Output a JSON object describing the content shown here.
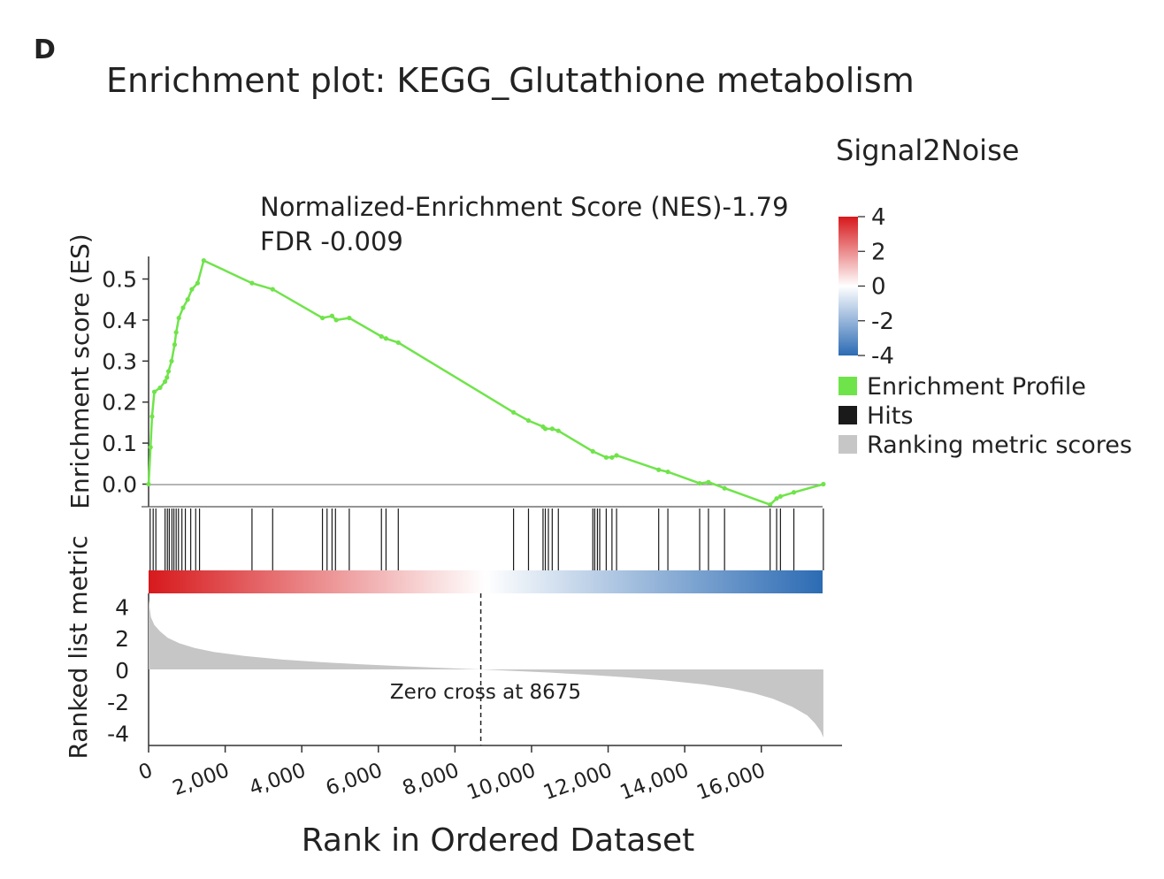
{
  "panel_label": "D",
  "title": "Enrichment plot: KEGG_Glutathione metabolism",
  "annotation": {
    "line1": "Normalized-Enrichment Score (NES)-1.79",
    "line2": "FDR -0.009"
  },
  "zero_cross_label": "Zero cross at 8675",
  "colorbar": {
    "title": "Signal2Noise",
    "ticks": [
      "4",
      "2",
      "0",
      "-2",
      "-4"
    ],
    "high_color": "#d7191c",
    "mid_color": "#ffffff",
    "low_color": "#2c6bb4"
  },
  "legend": [
    {
      "label": "Enrichment Profile",
      "color": "#6fe44a"
    },
    {
      "label": "Hits",
      "color": "#1a1a1a"
    },
    {
      "label": "Ranking metric scores",
      "color": "#c6c6c6"
    }
  ],
  "chart_data": {
    "type": "line",
    "xlabel": "Rank in Ordered Dataset",
    "ylabel_top": "Enrichment score (ES)",
    "ylabel_bottom": "Ranked list metric",
    "xlim": [
      0,
      17600
    ],
    "x_ticks": [
      0,
      2000,
      4000,
      6000,
      8000,
      10000,
      12000,
      14000,
      16000
    ],
    "x_tick_labels": [
      "0",
      "2,000",
      "4,000",
      "6,000",
      "8,000",
      "10,000",
      "12,000",
      "14,000",
      "16,000"
    ],
    "es_ylim": [
      -0.055,
      0.555
    ],
    "es_ticks": [
      0.0,
      0.1,
      0.2,
      0.3,
      0.4,
      0.5
    ],
    "es_tick_labels": [
      "0.0",
      "0.1",
      "0.2",
      "0.3",
      "0.4",
      "0.5"
    ],
    "metric_ylim": [
      -4.8,
      4.8
    ],
    "metric_ticks": [
      4,
      2,
      0,
      -2,
      -4
    ],
    "metric_tick_labels": [
      "4",
      "2",
      "0",
      "-2",
      "-4"
    ],
    "zero_cross": 8675,
    "series": [
      {
        "name": "Enrichment Profile",
        "x": [
          0,
          50,
          90,
          150,
          300,
          430,
          480,
          520,
          600,
          680,
          720,
          790,
          900,
          1020,
          1130,
          1280,
          1440,
          2700,
          3240,
          4540,
          4790,
          4900,
          5240,
          6080,
          6200,
          6520,
          9530,
          9920,
          10300,
          10360,
          10540,
          10700,
          11600,
          11950,
          12100,
          12220,
          13320,
          13560,
          14390,
          14620,
          15040,
          16230,
          16400,
          16500,
          16850,
          17620
        ],
        "y": [
          0.0,
          0.09,
          0.165,
          0.225,
          0.235,
          0.25,
          0.26,
          0.275,
          0.3,
          0.34,
          0.37,
          0.405,
          0.43,
          0.45,
          0.475,
          0.49,
          0.545,
          0.49,
          0.475,
          0.405,
          0.41,
          0.4,
          0.405,
          0.36,
          0.355,
          0.345,
          0.175,
          0.155,
          0.14,
          0.135,
          0.135,
          0.13,
          0.08,
          0.065,
          0.065,
          0.07,
          0.035,
          0.03,
          0.002,
          0.005,
          -0.01,
          -0.05,
          -0.035,
          -0.03,
          -0.02,
          0.0
        ]
      },
      {
        "name": "Hits",
        "x": [
          40,
          120,
          190,
          430,
          490,
          540,
          610,
          660,
          720,
          780,
          870,
          960,
          1100,
          1230,
          1330,
          2700,
          3240,
          4540,
          4660,
          4790,
          4880,
          5240,
          6080,
          6200,
          6520,
          9530,
          9920,
          10300,
          10360,
          10440,
          10540,
          10700,
          11600,
          11650,
          11720,
          11780,
          11950,
          12100,
          12220,
          13320,
          13560,
          14390,
          14620,
          15040,
          16230,
          16400,
          16500,
          16850,
          17620
        ]
      },
      {
        "name": "Ranking metric scores",
        "x": [
          0,
          60,
          150,
          300,
          500,
          800,
          1200,
          1700,
          2500,
          3500,
          4500,
          5500,
          6500,
          7500,
          8675,
          9500,
          10500,
          11500,
          12500,
          13500,
          14500,
          15200,
          15800,
          16300,
          16800,
          17200,
          17400,
          17550,
          17620
        ],
        "y": [
          4.4,
          3.3,
          2.8,
          2.4,
          2.0,
          1.65,
          1.35,
          1.1,
          0.85,
          0.62,
          0.46,
          0.33,
          0.22,
          0.11,
          0.0,
          -0.09,
          -0.2,
          -0.34,
          -0.5,
          -0.7,
          -0.95,
          -1.2,
          -1.5,
          -1.85,
          -2.35,
          -2.9,
          -3.4,
          -3.9,
          -4.3
        ]
      }
    ]
  }
}
